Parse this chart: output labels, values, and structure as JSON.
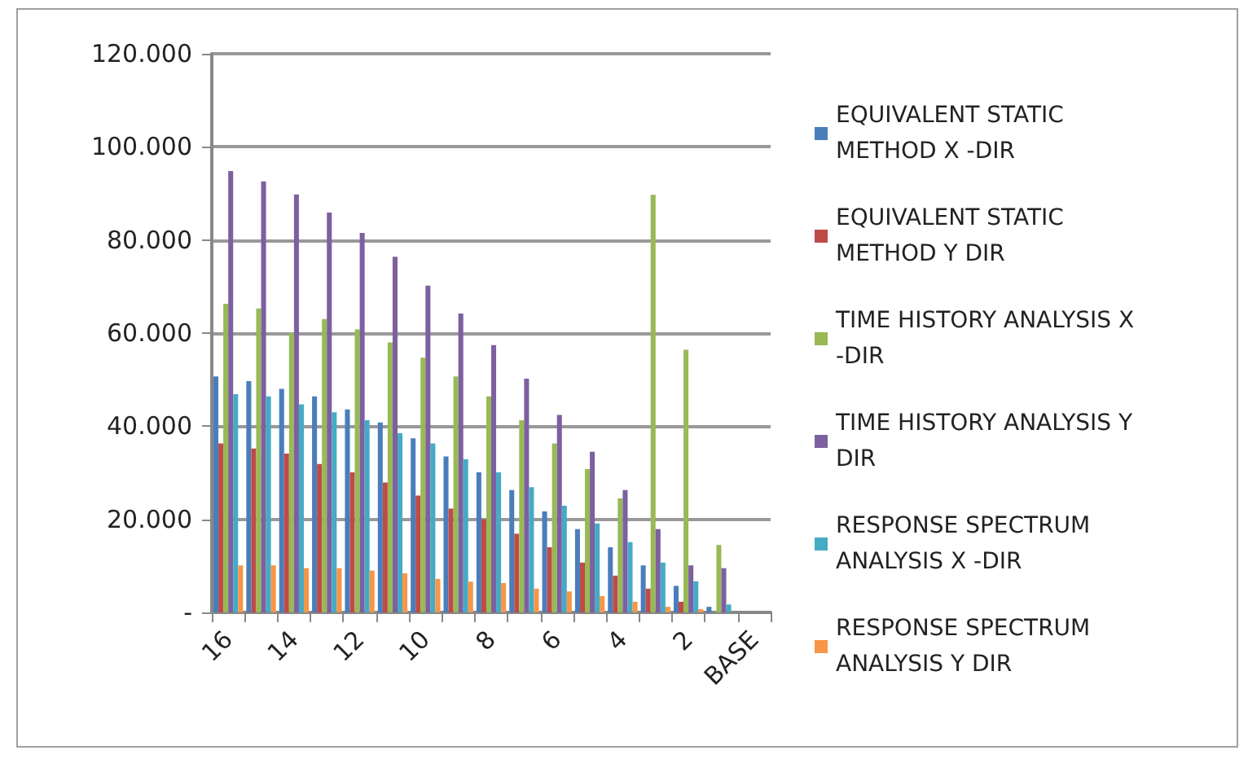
{
  "chart_data": {
    "type": "bar",
    "categories": [
      "16",
      null,
      "14",
      null,
      "12",
      null,
      "10",
      null,
      "8",
      null,
      "6",
      null,
      "4",
      null,
      "2",
      null,
      "BASE"
    ],
    "series": [
      {
        "name": "EQUIVALENT STATIC METHOD X -DIR",
        "color": "#4a7ebb",
        "values": [
          50.7,
          49.7,
          48.0,
          46.4,
          43.6,
          40.8,
          37.4,
          33.5,
          30.1,
          26.3,
          21.7,
          17.9,
          14.0,
          10.1,
          5.7,
          1.2,
          0
        ]
      },
      {
        "name": "EQUIVALENT STATIC METHOD Y DIR",
        "color": "#be4b48",
        "values": [
          36.3,
          35.2,
          34.1,
          31.9,
          30.1,
          27.9,
          25.1,
          22.3,
          20.0,
          16.9,
          14.0,
          10.7,
          7.9,
          5.1,
          2.3,
          0,
          0
        ]
      },
      {
        "name": "TIME HISTORY ANALYSIS X -DIR",
        "color": "#98b954",
        "values": [
          66.3,
          65.3,
          60.1,
          63.0,
          60.8,
          58.0,
          54.7,
          50.7,
          46.4,
          41.3,
          36.3,
          30.8,
          24.5,
          89.7,
          56.4,
          14.5,
          0
        ]
      },
      {
        "name": "TIME HISTORY ANALYSIS Y DIR",
        "color": "#7d60a0",
        "values": [
          94.8,
          92.6,
          89.8,
          85.9,
          81.5,
          76.4,
          70.2,
          64.2,
          57.4,
          50.2,
          42.4,
          34.5,
          26.3,
          17.9,
          10.1,
          9.5,
          0
        ]
      },
      {
        "name": "RESPONSE SPECTRUM ANALYSIS X -DIR",
        "color": "#46aac5",
        "values": [
          46.9,
          46.4,
          44.7,
          43.0,
          41.3,
          38.5,
          36.3,
          32.9,
          30.1,
          26.9,
          22.9,
          19.1,
          15.1,
          10.7,
          6.7,
          1.7,
          0
        ]
      },
      {
        "name": "RESPONSE SPECTRUM ANALYSIS Y DIR",
        "color": "#f79646",
        "values": [
          10.1,
          10.1,
          9.5,
          9.5,
          9.0,
          8.4,
          7.2,
          6.6,
          6.3,
          5.1,
          4.5,
          3.5,
          2.3,
          1.2,
          0.7,
          0,
          0
        ]
      }
    ],
    "ylim": [
      0,
      120
    ],
    "yticks": [
      {
        "value": 0,
        "label": "-"
      },
      {
        "value": 20,
        "label": "20.000"
      },
      {
        "value": 40,
        "label": "40.000"
      },
      {
        "value": 60,
        "label": "60.000"
      },
      {
        "value": 80,
        "label": "80.000"
      },
      {
        "value": 100,
        "label": "100.000"
      },
      {
        "value": 120,
        "label": "120.000"
      }
    ],
    "grid": "y",
    "legend": "right"
  }
}
